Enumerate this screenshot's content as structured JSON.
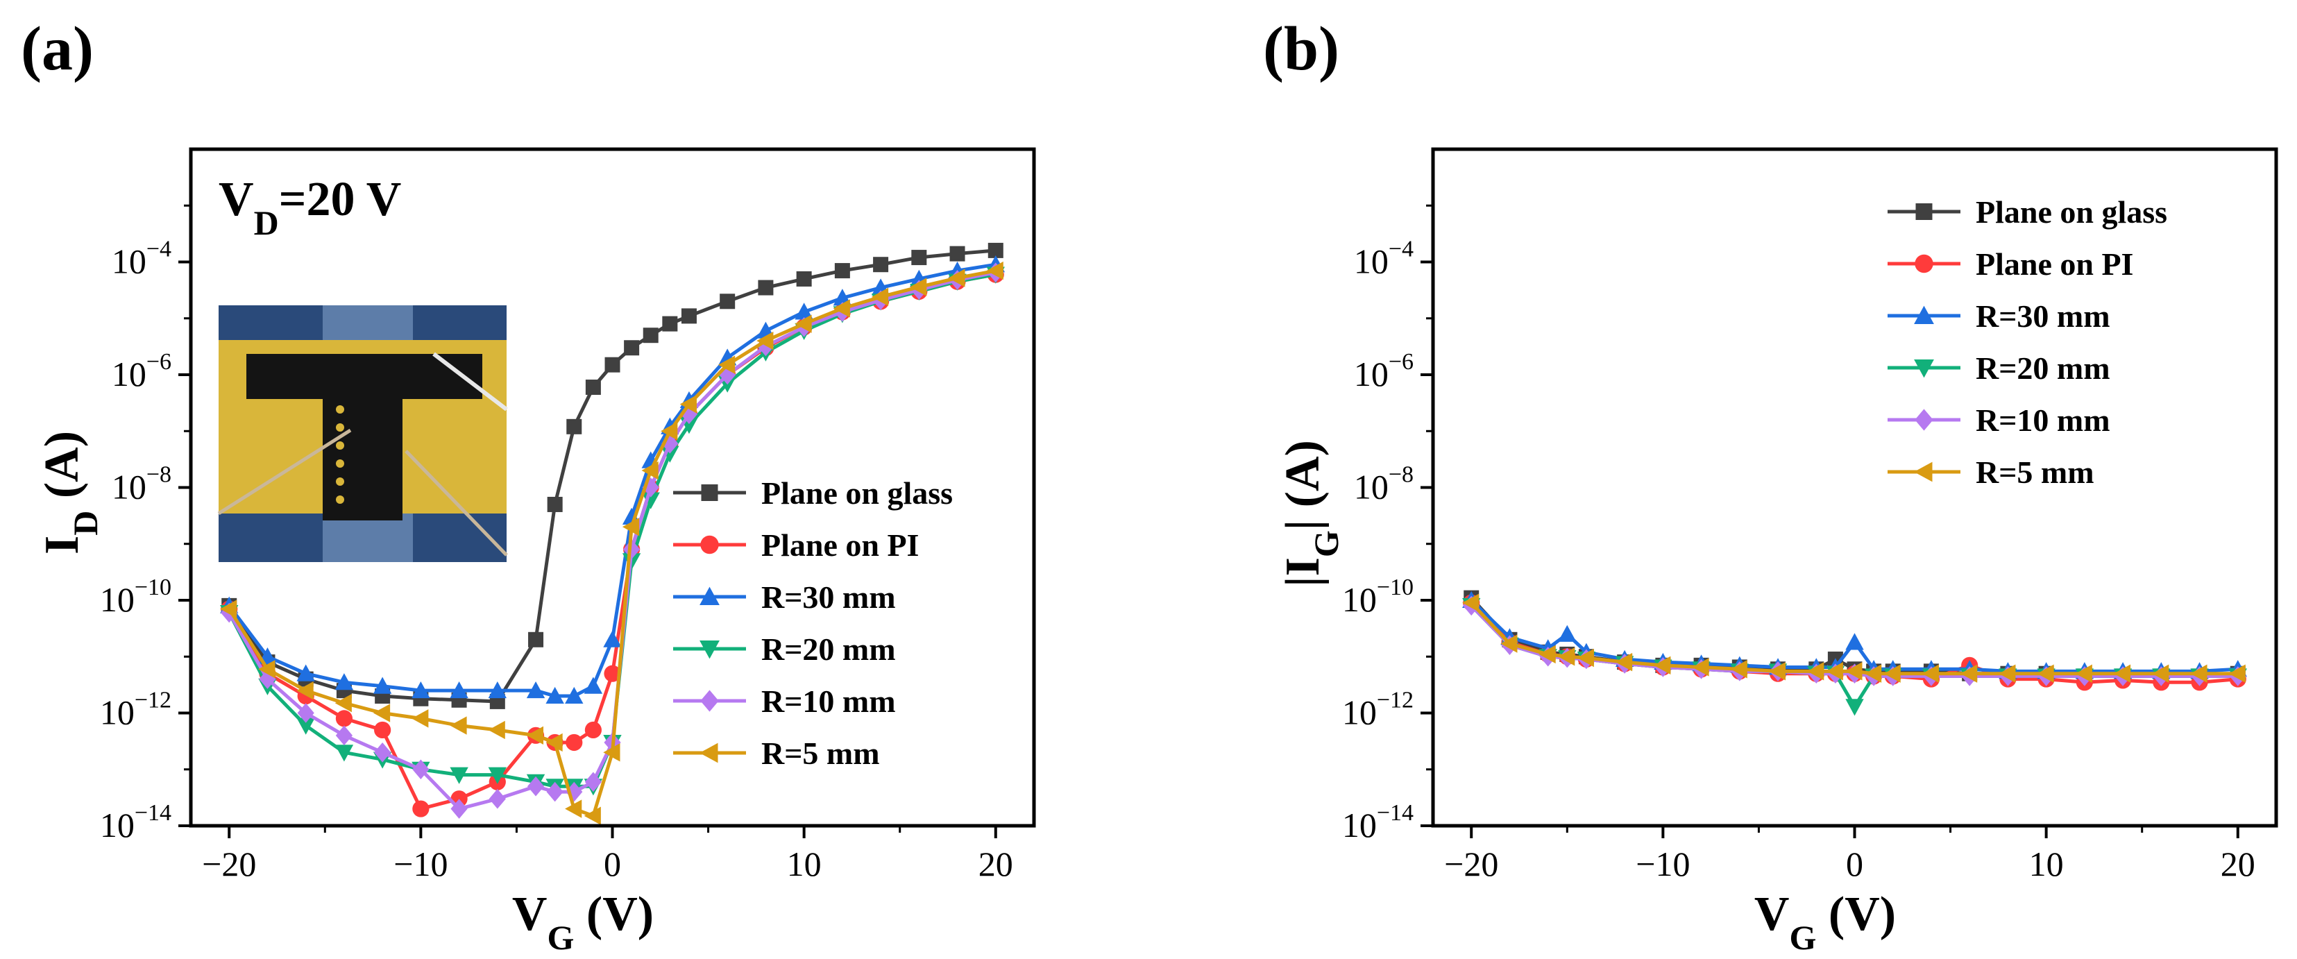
{
  "figure": {
    "panel_labels": [
      "(a)",
      "(b)"
    ]
  },
  "colors": {
    "Plane on glass": "#404040",
    "Plane on PI": "#ff3b3b",
    "R=30 mm": "#1f6fe0",
    "R=20 mm": "#12b07a",
    "R=10 mm": "#b679f0",
    "R=5 mm": "#d99b12",
    "photo_bg": "#2a4a7a",
    "photo_film": "#d9b63a"
  },
  "chart_data": [
    {
      "type": "scatter",
      "panel": "(a)",
      "ylabel": "I_D (A)",
      "ylabel_main": "I",
      "ylabel_sub": "D",
      "ylabel_unit": " (A)",
      "xlabel_main": "V",
      "xlabel_sub": "G",
      "xlabel_unit": " (V)",
      "xlim": [
        -22,
        22
      ],
      "ylim": [
        1e-14,
        0.01
      ],
      "y_scale": "log",
      "x_ticks": [
        -20,
        -10,
        0,
        10,
        20
      ],
      "x_tick_labels": [
        "−20",
        "−10",
        "0",
        "10",
        "20"
      ],
      "y_ticks": [
        1e-14,
        1e-12,
        1e-10,
        1e-08,
        1e-06,
        0.0001
      ],
      "y_tick_labels": [
        {
          "base": "10",
          "exp": "−14"
        },
        {
          "base": "10",
          "exp": "−12"
        },
        {
          "base": "10",
          "exp": "−10"
        },
        {
          "base": "10",
          "exp": "−8"
        },
        {
          "base": "10",
          "exp": "−6"
        },
        {
          "base": "10",
          "exp": "−4"
        }
      ],
      "annotation": {
        "main": "V",
        "sub": "D",
        "rest": "=20 V"
      },
      "legend_position": "bottom-right",
      "inset": "photograph of flexible device mounted on cylinder",
      "x": [
        -20,
        -18,
        -16,
        -14,
        -12,
        -10,
        -8,
        -6,
        -4,
        -3,
        -2,
        -1,
        0,
        1,
        2,
        3,
        4,
        6,
        8,
        10,
        12,
        14,
        16,
        18,
        20
      ],
      "series": [
        {
          "name": "Plane on glass",
          "marker": "square",
          "values": [
            8e-11,
            8e-12,
            4e-12,
            2.5e-12,
            2e-12,
            1.8e-12,
            1.7e-12,
            1.6e-12,
            2e-11,
            5e-09,
            1.2e-07,
            6e-07,
            1.5e-06,
            3e-06,
            5e-06,
            8e-06,
            1.1e-05,
            2e-05,
            3.5e-05,
            5e-05,
            7e-05,
            9e-05,
            0.00012,
            0.00014,
            0.00016
          ]
        },
        {
          "name": "Plane on PI",
          "marker": "circle",
          "values": [
            7e-11,
            5e-12,
            2e-12,
            8e-13,
            5e-13,
            2e-14,
            3e-14,
            6e-14,
            4e-13,
            3e-13,
            3e-13,
            5e-13,
            5e-12,
            8e-10,
            1e-08,
            6e-08,
            2e-07,
            1e-06,
            3e-06,
            7e-06,
            1.3e-05,
            2e-05,
            3e-05,
            4.5e-05,
            6e-05
          ]
        },
        {
          "name": "R=30 mm",
          "marker": "triangle-up",
          "values": [
            8e-11,
            1e-11,
            5e-12,
            3.5e-12,
            3e-12,
            2.5e-12,
            2.5e-12,
            2.5e-12,
            2.5e-12,
            2e-12,
            2e-12,
            3e-12,
            2e-11,
            3e-09,
            3e-08,
            1.2e-07,
            3.5e-07,
            2e-06,
            6e-06,
            1.3e-05,
            2.3e-05,
            3.5e-05,
            5e-05,
            7e-05,
            9e-05
          ]
        },
        {
          "name": "R=20 mm",
          "marker": "triangle-down",
          "values": [
            6e-11,
            3e-12,
            6e-13,
            2e-13,
            1.5e-13,
            1e-13,
            8e-14,
            8e-14,
            6e-14,
            5e-14,
            5e-14,
            5e-14,
            3e-13,
            5e-10,
            6e-09,
            4e-08,
            1.3e-07,
            7e-07,
            2.5e-06,
            6e-06,
            1.2e-05,
            2e-05,
            3e-05,
            4.5e-05,
            6e-05
          ]
        },
        {
          "name": "R=10 mm",
          "marker": "diamond",
          "values": [
            6e-11,
            4e-12,
            1e-12,
            4e-13,
            2e-13,
            1e-13,
            2e-14,
            3e-14,
            5e-14,
            4e-14,
            4e-14,
            6e-14,
            3e-13,
            8e-10,
            1e-08,
            6e-08,
            2e-07,
            1e-06,
            3.2e-06,
            7e-06,
            1.3e-05,
            2.1e-05,
            3.2e-05,
            4.8e-05,
            6.5e-05
          ]
        },
        {
          "name": "R=5 mm",
          "marker": "triangle-left",
          "values": [
            7e-11,
            6e-12,
            2.5e-12,
            1.5e-12,
            1e-12,
            8e-13,
            6e-13,
            5e-13,
            4e-13,
            3e-13,
            2e-14,
            1.5e-14,
            2e-13,
            2e-09,
            2e-08,
            1e-07,
            3e-07,
            1.5e-06,
            4e-06,
            8e-06,
            1.5e-05,
            2.4e-05,
            3.6e-05,
            5.2e-05,
            7e-05
          ]
        }
      ]
    },
    {
      "type": "scatter",
      "panel": "(b)",
      "ylabel": "|I_G| (A)",
      "ylabel_main": "|I",
      "ylabel_sub": "G",
      "ylabel_unit": "| (A)",
      "xlabel_main": "V",
      "xlabel_sub": "G",
      "xlabel_unit": " (V)",
      "xlim": [
        -22,
        22
      ],
      "ylim": [
        1e-14,
        0.01
      ],
      "y_scale": "log",
      "x_ticks": [
        -20,
        -10,
        0,
        10,
        20
      ],
      "x_tick_labels": [
        "−20",
        "−10",
        "0",
        "10",
        "20"
      ],
      "y_ticks": [
        1e-14,
        1e-12,
        1e-10,
        1e-08,
        1e-06,
        0.0001
      ],
      "y_tick_labels": [
        {
          "base": "10",
          "exp": "−14"
        },
        {
          "base": "10",
          "exp": "−12"
        },
        {
          "base": "10",
          "exp": "−10"
        },
        {
          "base": "10",
          "exp": "−8"
        },
        {
          "base": "10",
          "exp": "−6"
        },
        {
          "base": "10",
          "exp": "−4"
        }
      ],
      "legend_position": "top-right",
      "x": [
        -20,
        -18,
        -16,
        -15,
        -14,
        -12,
        -10,
        -8,
        -6,
        -4,
        -2,
        -1,
        0,
        1,
        2,
        4,
        6,
        8,
        10,
        12,
        14,
        16,
        18,
        20
      ],
      "series": [
        {
          "name": "Plane on glass",
          "marker": "square",
          "values": [
            1.1e-10,
            2e-11,
            1.2e-11,
            1.1e-11,
            1e-11,
            8e-12,
            7e-12,
            7e-12,
            6.5e-12,
            6e-12,
            6e-12,
            9e-12,
            6e-12,
            5.5e-12,
            5.5e-12,
            5.5e-12,
            5e-12,
            5e-12,
            5e-12,
            4.5e-12,
            4.5e-12,
            4.5e-12,
            4.5e-12,
            5e-12
          ]
        },
        {
          "name": "Plane on PI",
          "marker": "circle",
          "values": [
            9e-11,
            1.8e-11,
            1.1e-11,
            1e-11,
            9e-12,
            7.5e-12,
            6.5e-12,
            6e-12,
            5.5e-12,
            5e-12,
            5e-12,
            5e-12,
            5e-12,
            4.5e-12,
            4.5e-12,
            4e-12,
            7e-12,
            4e-12,
            4e-12,
            3.5e-12,
            3.8e-12,
            3.5e-12,
            3.5e-12,
            4e-12
          ]
        },
        {
          "name": "R=30 mm",
          "marker": "triangle-up",
          "values": [
            1e-10,
            2.2e-11,
            1.4e-11,
            2.5e-11,
            1.2e-11,
            9e-12,
            8e-12,
            7.5e-12,
            7e-12,
            6.5e-12,
            6.5e-12,
            6.5e-12,
            1.8e-11,
            6e-12,
            6e-12,
            6e-12,
            6e-12,
            5.5e-12,
            5.5e-12,
            5.5e-12,
            5.5e-12,
            5.5e-12,
            5.5e-12,
            6e-12
          ]
        },
        {
          "name": "R=20 mm",
          "marker": "triangle-down",
          "values": [
            8e-11,
            1.6e-11,
            1e-11,
            9.5e-12,
            9e-12,
            7.5e-12,
            6.5e-12,
            6e-12,
            5.5e-12,
            5.5e-12,
            5e-12,
            5e-12,
            1.3e-12,
            4.5e-12,
            4.5e-12,
            4.5e-12,
            4.5e-12,
            4.5e-12,
            4.5e-12,
            4.5e-12,
            4.5e-12,
            4.5e-12,
            4.5e-12,
            4.5e-12
          ]
        },
        {
          "name": "R=10 mm",
          "marker": "diamond",
          "values": [
            8e-11,
            1.6e-11,
            1e-11,
            9.5e-12,
            9e-12,
            7.5e-12,
            6.5e-12,
            6e-12,
            5.5e-12,
            5.5e-12,
            5e-12,
            5e-12,
            5e-12,
            4.5e-12,
            4.5e-12,
            4.5e-12,
            4.5e-12,
            4.5e-12,
            4.5e-12,
            4.5e-12,
            4.5e-12,
            4.5e-12,
            4.5e-12,
            4.5e-12
          ]
        },
        {
          "name": "R=5 mm",
          "marker": "triangle-left",
          "values": [
            9e-11,
            1.7e-11,
            1.1e-11,
            1e-11,
            9.5e-12,
            8e-12,
            7e-12,
            6.5e-12,
            6e-12,
            5.5e-12,
            5.5e-12,
            5.5e-12,
            5.5e-12,
            5e-12,
            5e-12,
            5e-12,
            5e-12,
            5e-12,
            5e-12,
            5e-12,
            5e-12,
            5e-12,
            5e-12,
            5e-12
          ]
        }
      ]
    }
  ]
}
